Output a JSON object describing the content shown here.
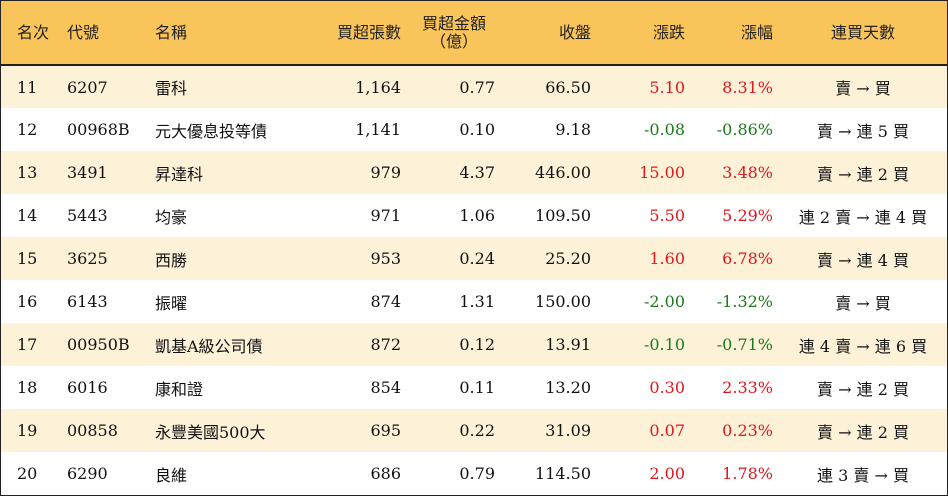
{
  "headers": {
    "rank": "名次",
    "code": "代號",
    "name": "名稱",
    "net_lots": "買超張數",
    "amount_line1": "買超金額",
    "amount_line2": "（億）",
    "close": "收盤",
    "change": "漲跌",
    "pct": "漲幅",
    "streak": "連買天數"
  },
  "rows": [
    {
      "rank": "11",
      "code": "6207",
      "name": "雷科",
      "net_lots": "1,164",
      "amount": "0.77",
      "close": "66.50",
      "change": "5.10",
      "pct": "8.31%",
      "streak": "賣 → 買"
    },
    {
      "rank": "12",
      "code": "00968B",
      "name": "元大優息投等債",
      "net_lots": "1,141",
      "amount": "0.10",
      "close": "9.18",
      "change": "-0.08",
      "pct": "-0.86%",
      "streak": "賣 → 連 5 買"
    },
    {
      "rank": "13",
      "code": "3491",
      "name": "昇達科",
      "net_lots": "979",
      "amount": "4.37",
      "close": "446.00",
      "change": "15.00",
      "pct": "3.48%",
      "streak": "賣 → 連 2 買"
    },
    {
      "rank": "14",
      "code": "5443",
      "name": "均豪",
      "net_lots": "971",
      "amount": "1.06",
      "close": "109.50",
      "change": "5.50",
      "pct": "5.29%",
      "streak": "連 2 賣 → 連 4 買"
    },
    {
      "rank": "15",
      "code": "3625",
      "name": "西勝",
      "net_lots": "953",
      "amount": "0.24",
      "close": "25.20",
      "change": "1.60",
      "pct": "6.78%",
      "streak": "賣 → 連 4 買"
    },
    {
      "rank": "16",
      "code": "6143",
      "name": "振曜",
      "net_lots": "874",
      "amount": "1.31",
      "close": "150.00",
      "change": "-2.00",
      "pct": "-1.32%",
      "streak": "賣 → 買"
    },
    {
      "rank": "17",
      "code": "00950B",
      "name": "凱基A級公司債",
      "net_lots": "872",
      "amount": "0.12",
      "close": "13.91",
      "change": "-0.10",
      "pct": "-0.71%",
      "streak": "連 4 賣 → 連 6 買"
    },
    {
      "rank": "18",
      "code": "6016",
      "name": "康和證",
      "net_lots": "854",
      "amount": "0.11",
      "close": "13.20",
      "change": "0.30",
      "pct": "2.33%",
      "streak": "賣 → 連 2 買"
    },
    {
      "rank": "19",
      "code": "00858",
      "name": "永豐美國500大",
      "net_lots": "695",
      "amount": "0.22",
      "close": "31.09",
      "change": "0.07",
      "pct": "0.23%",
      "streak": "賣 → 連 2 買"
    },
    {
      "rank": "20",
      "code": "6290",
      "name": "良維",
      "net_lots": "686",
      "amount": "0.79",
      "close": "114.50",
      "change": "2.00",
      "pct": "1.78%",
      "streak": "連 3 賣 → 買"
    }
  ],
  "colors": {
    "header_bg": "#f9c45a",
    "stripe_bg": "#fdf1d8",
    "up": "#e0161d",
    "down": "#1b7a1b"
  }
}
